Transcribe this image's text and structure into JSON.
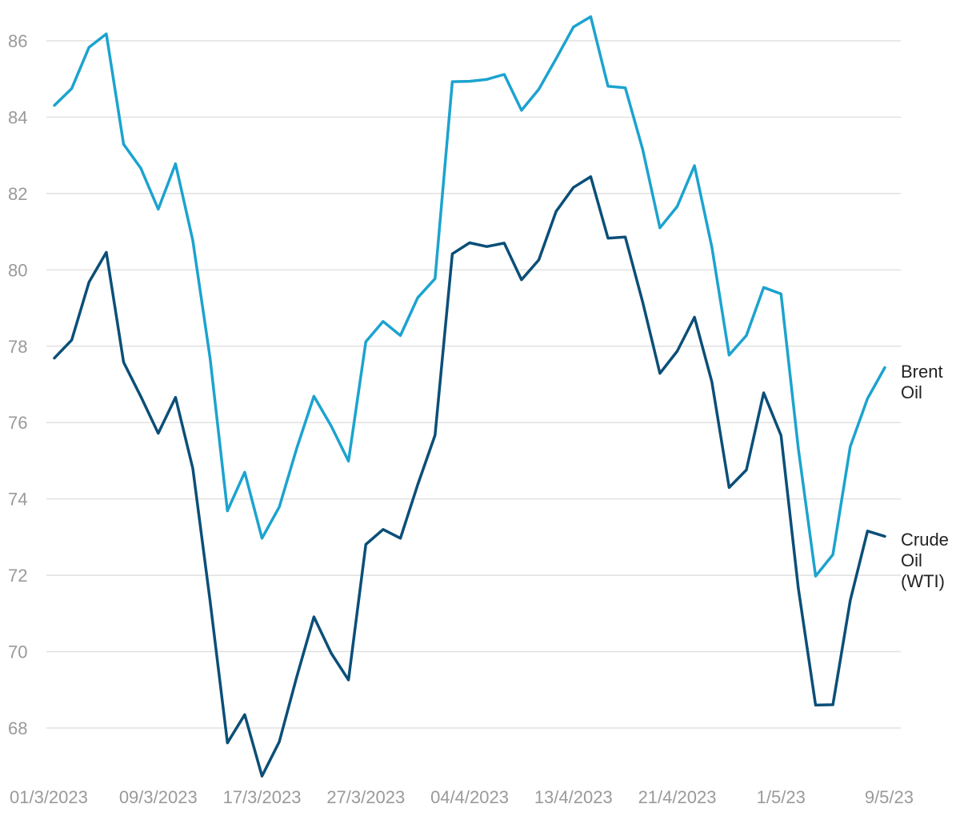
{
  "chart_data": {
    "type": "line",
    "title": "",
    "xlabel": "",
    "ylabel": "",
    "ylim": [
      66.7,
      87.2
    ],
    "yticks": [
      68,
      70,
      72,
      74,
      76,
      78,
      80,
      82,
      84,
      86
    ],
    "grid": true,
    "legend": "end-of-line labels (right)",
    "x_tick_labels": [
      {
        "label": "01/3/2023",
        "index": 0
      },
      {
        "label": "09/3/2023",
        "index": 6
      },
      {
        "label": "17/3/2023",
        "index": 12
      },
      {
        "label": "27/3/2023",
        "index": 18
      },
      {
        "label": "04/4/2023",
        "index": 24
      },
      {
        "label": "13/4/2023",
        "index": 30
      },
      {
        "label": "21/4/2023",
        "index": 36
      },
      {
        "label": "1/5/23",
        "index": 42
      },
      {
        "label": "9/5/23",
        "index": 48
      }
    ],
    "series": [
      {
        "name": "Brent Oil",
        "label_lines": [
          "Brent",
          "Oil"
        ],
        "color": "#1ca3cf",
        "values": [
          84.31,
          84.75,
          85.83,
          86.18,
          83.29,
          82.66,
          81.59,
          82.78,
          80.77,
          77.69,
          73.69,
          74.7,
          72.97,
          73.79,
          75.32,
          76.69,
          75.91,
          74.99,
          78.12,
          78.65,
          78.28,
          79.27,
          79.77,
          84.93,
          84.94,
          84.99,
          85.12,
          84.18,
          84.73,
          85.53,
          86.36,
          86.63,
          84.81,
          84.77,
          83.16,
          81.1,
          81.66,
          82.73,
          80.6,
          77.77,
          78.28,
          79.54,
          79.37,
          75.32,
          71.98,
          72.54,
          75.37,
          76.63,
          77.44
        ]
      },
      {
        "name": "Crude Oil (WTI)",
        "label_lines": [
          "Crude",
          "Oil",
          "(WTI)"
        ],
        "color": "#0b4f78",
        "values": [
          77.69,
          78.16,
          79.68,
          80.46,
          77.58,
          76.68,
          75.72,
          76.66,
          74.8,
          71.33,
          67.61,
          68.35,
          66.74,
          67.64,
          69.33,
          70.91,
          69.96,
          69.26,
          72.81,
          73.2,
          72.97,
          74.37,
          75.67,
          80.42,
          80.71,
          80.61,
          80.7,
          79.74,
          80.26,
          81.53,
          82.16,
          82.44,
          80.83,
          80.86,
          79.16,
          77.29,
          77.87,
          78.76,
          77.07,
          74.3,
          74.76,
          76.78,
          75.66,
          71.66,
          68.6,
          68.61,
          71.34,
          73.16,
          73.02
        ]
      }
    ]
  }
}
